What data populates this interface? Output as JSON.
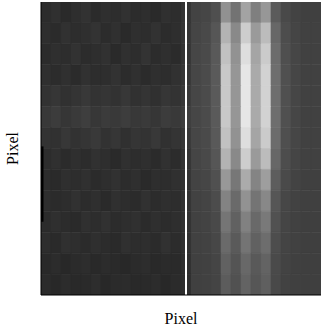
{
  "chart_data": {
    "type": "heatmap",
    "x_label": "Pixel",
    "y_label": "Pixel",
    "xlim": [
      0,
      28
    ],
    "ylim": [
      0,
      14
    ],
    "tick_labels": false,
    "x_edges": [
      0,
      1,
      2,
      3,
      4,
      5,
      6,
      7,
      8,
      9,
      10,
      11,
      12,
      13,
      14,
      15,
      16,
      17,
      18,
      19,
      20,
      21,
      22,
      23,
      24,
      25,
      26,
      27,
      28
    ],
    "y_edges": [
      14,
      13,
      12,
      11,
      10,
      9,
      8,
      7,
      6,
      5,
      4,
      3,
      2,
      1,
      0
    ],
    "zlim": [
      0,
      255
    ],
    "z": [
      [
        44,
        48,
        42,
        46,
        50,
        43,
        47,
        45,
        49,
        44,
        46,
        42,
        48,
        45,
        52,
        67,
        70,
        79,
        145,
        115,
        163,
        127,
        151,
        91,
        73,
        67,
        64,
        64
      ],
      [
        46,
        43,
        49,
        45,
        47,
        51,
        44,
        48,
        42,
        47,
        45,
        50,
        44,
        46,
        53,
        69,
        73,
        86,
        179,
        137,
        205,
        154,
        188,
        103,
        77,
        69,
        65,
        65
      ],
      [
        43,
        47,
        45,
        50,
        44,
        46,
        49,
        42,
        48,
        45,
        51,
        44,
        47,
        43,
        52,
        70,
        74,
        89,
        193,
        146,
        222,
        165,
        203,
        108,
        79,
        70,
        65,
        65
      ],
      [
        47,
        44,
        48,
        43,
        49,
        45,
        46,
        50,
        44,
        48,
        43,
        47,
        45,
        49,
        54,
        70,
        75,
        90,
        200,
        150,
        230,
        170,
        210,
        110,
        80,
        70,
        65,
        65
      ],
      [
        50,
        54,
        49,
        52,
        56,
        51,
        53,
        50,
        55,
        49,
        52,
        48,
        54,
        51,
        57,
        70,
        75,
        90,
        200,
        150,
        230,
        170,
        210,
        110,
        80,
        70,
        65,
        65
      ],
      [
        56,
        60,
        54,
        58,
        62,
        55,
        59,
        57,
        61,
        56,
        58,
        54,
        60,
        57,
        62,
        70,
        75,
        90,
        200,
        150,
        230,
        170,
        210,
        110,
        80,
        70,
        65,
        65
      ],
      [
        51,
        49,
        55,
        50,
        53,
        57,
        50,
        54,
        48,
        53,
        51,
        56,
        49,
        52,
        56,
        70,
        74,
        89,
        193,
        146,
        222,
        165,
        203,
        108,
        79,
        70,
        65,
        65
      ],
      [
        45,
        48,
        43,
        47,
        44,
        49,
        46,
        42,
        48,
        45,
        47,
        43,
        49,
        44,
        51,
        69,
        73,
        86,
        179,
        137,
        205,
        154,
        188,
        103,
        77,
        69,
        65,
        65
      ],
      [
        44,
        42,
        47,
        45,
        48,
        43,
        46,
        49,
        44,
        47,
        42,
        46,
        45,
        48,
        50,
        67,
        70,
        80,
        152,
        119,
        171,
        132,
        158,
        93,
        74,
        67,
        64,
        64
      ],
      [
        46,
        43,
        45,
        49,
        44,
        47,
        42,
        48,
        45,
        43,
        49,
        44,
        47,
        45,
        50,
        66,
        68,
        76,
        131,
        106,
        146,
        116,
        136,
        86,
        71,
        66,
        64,
        64
      ],
      [
        43,
        47,
        44,
        42,
        48,
        45,
        49,
        44,
        46,
        48,
        43,
        47,
        44,
        46,
        49,
        65,
        67,
        73,
        117,
        97,
        129,
        105,
        121,
        81,
        69,
        65,
        63,
        63
      ],
      [
        45,
        42,
        48,
        46,
        43,
        47,
        44,
        42,
        48,
        45,
        46,
        43,
        49,
        44,
        48,
        65,
        66,
        71,
        106,
        90,
        116,
        97,
        109,
        77,
        68,
        65,
        63,
        63
      ],
      [
        41,
        44,
        40,
        43,
        45,
        41,
        44,
        42,
        40,
        43,
        45,
        41,
        43,
        42,
        46,
        64,
        65,
        69,
        97,
        84,
        104,
        89,
        99,
        74,
        67,
        64,
        63,
        63
      ],
      [
        43,
        40,
        44,
        41,
        42,
        45,
        40,
        43,
        44,
        41,
        42,
        44,
        40,
        43,
        45,
        64,
        65,
        68,
        92,
        81,
        99,
        86,
        95,
        73,
        66,
        64,
        63,
        63
      ]
    ],
    "reference_line": {
      "x": 14.5,
      "color": "#ffffff"
    },
    "mask": {
      "x": [
        0,
        0.25
      ],
      "y": [
        3.5,
        7.1
      ],
      "color": "#000000"
    }
  }
}
